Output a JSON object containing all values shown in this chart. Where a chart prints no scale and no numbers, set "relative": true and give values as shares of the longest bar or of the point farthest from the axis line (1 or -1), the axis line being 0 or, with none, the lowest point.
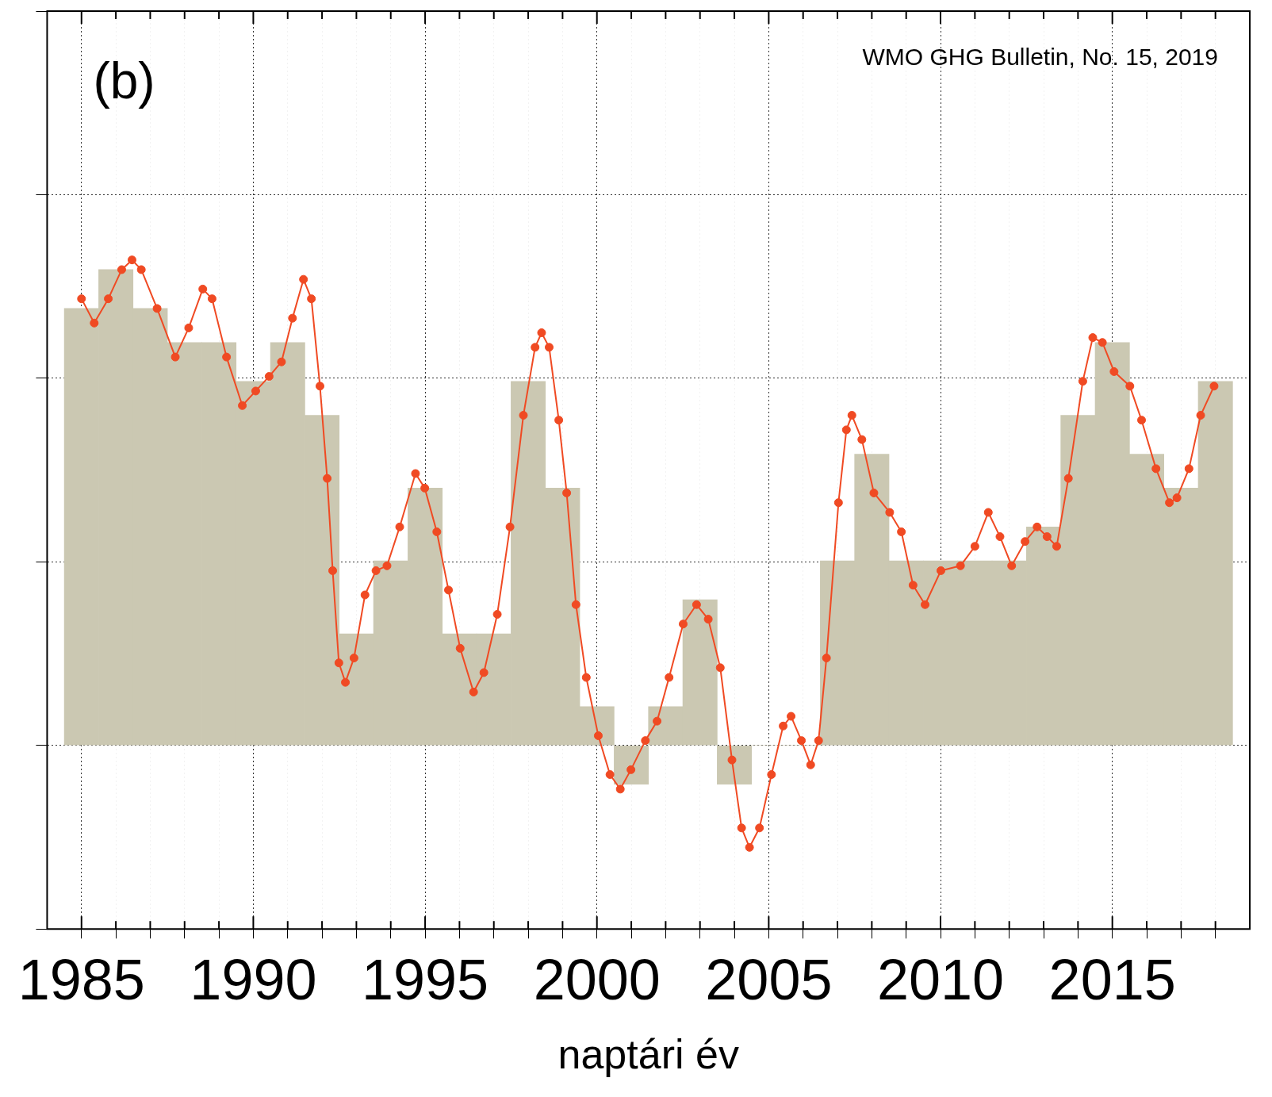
{
  "chart_data": {
    "type": "bar",
    "relative": true,
    "xlabel": "naptári év",
    "xlim": [
      1984,
      2019
    ],
    "xticks": [
      1985,
      {
        "value": 1986,
        "label": null
      },
      {
        "value": 1987,
        "label": null
      },
      {
        "value": 1988,
        "label": null
      },
      {
        "value": 1989,
        "label": null
      },
      1990,
      {
        "value": 1991,
        "label": null
      },
      {
        "value": 1992,
        "label": null
      },
      {
        "value": 1993,
        "label": null
      },
      {
        "value": 1994,
        "label": null
      },
      1995,
      {
        "value": 1996,
        "label": null
      },
      {
        "value": 1997,
        "label": null
      },
      {
        "value": 1998,
        "label": null
      },
      {
        "value": 1999,
        "label": null
      },
      2000,
      {
        "value": 2001,
        "label": null
      },
      {
        "value": 2002,
        "label": null
      },
      {
        "value": 2003,
        "label": null
      },
      {
        "value": 2004,
        "label": null
      },
      2005,
      {
        "value": 2006,
        "label": null
      },
      {
        "value": 2007,
        "label": null
      },
      {
        "value": 2008,
        "label": null
      },
      {
        "value": 2009,
        "label": null
      },
      2010,
      {
        "value": 2011,
        "label": null
      },
      {
        "value": 2012,
        "label": null
      },
      {
        "value": 2013,
        "label": null
      },
      {
        "value": 2014,
        "label": null
      },
      2015,
      {
        "value": 2016,
        "label": null
      },
      {
        "value": 2017,
        "label": null
      },
      {
        "value": 2018,
        "label": null
      }
    ],
    "grid": true,
    "tick_labels": "x",
    "annotations": [
      "(b)",
      "WMO GHG Bulletin, No. 15, 2019"
    ],
    "series": [
      {
        "color": "#cbc8b2",
        "x": [
          1985,
          1986,
          1987,
          1988,
          1989,
          1990,
          1991,
          1992,
          1993,
          1994,
          1995,
          1996,
          1997,
          1998,
          1999,
          2000,
          2001,
          2002,
          2003,
          2004,
          2005,
          2006,
          2007,
          2008,
          2009,
          2010,
          2011,
          2012,
          2013,
          2014,
          2015,
          2016,
          2017,
          2018
        ],
        "values": [
          0.9,
          0.98,
          0.9,
          0.83,
          0.83,
          0.75,
          0.83,
          0.68,
          0.23,
          0.38,
          0.53,
          0.23,
          0.23,
          0.75,
          0.53,
          0.08,
          -0.08,
          0.08,
          0.3,
          -0.08,
          0,
          0,
          0.38,
          0.6,
          0.38,
          0.38,
          0.38,
          0.38,
          0.45,
          0.68,
          0.83,
          0.6,
          0.53,
          0.75
        ]
      },
      {
        "type": "line",
        "color": "#f04a23",
        "marker": "circle",
        "x": [
          1985.0,
          1985.37,
          1985.78,
          1986.17,
          1986.47,
          1986.74,
          1987.2,
          1987.73,
          1988.12,
          1988.53,
          1988.8,
          1989.22,
          1989.68,
          1990.07,
          1990.46,
          1990.82,
          1991.14,
          1991.46,
          1991.69,
          1991.94,
          1992.15,
          1992.31,
          1992.49,
          1992.68,
          1992.93,
          1993.25,
          1993.57,
          1993.89,
          1994.26,
          1994.72,
          1994.99,
          1995.34,
          1995.68,
          1996.02,
          1996.41,
          1996.71,
          1997.1,
          1997.47,
          1997.86,
          1998.2,
          1998.39,
          1998.61,
          1998.89,
          1999.12,
          1999.39,
          1999.69,
          2000.04,
          2000.38,
          2000.68,
          2000.99,
          2001.41,
          2001.75,
          2002.1,
          2002.51,
          2002.9,
          2003.24,
          2003.59,
          2003.93,
          2004.21,
          2004.44,
          2004.73,
          2005.08,
          2005.42,
          2005.65,
          2005.95,
          2006.22,
          2006.45,
          2006.68,
          2007.03,
          2007.26,
          2007.42,
          2007.71,
          2008.06,
          2008.52,
          2008.86,
          2009.2,
          2009.55,
          2010.01,
          2010.58,
          2011.0,
          2011.39,
          2011.73,
          2012.07,
          2012.46,
          2012.81,
          2013.1,
          2013.38,
          2013.72,
          2014.14,
          2014.43,
          2014.71,
          2015.05,
          2015.51,
          2015.85,
          2016.27,
          2016.66,
          2016.88,
          2017.23,
          2017.57,
          2017.96
        ],
        "values": [
          0.92,
          0.87,
          0.92,
          0.98,
          1,
          0.98,
          0.9,
          0.8,
          0.86,
          0.94,
          0.92,
          0.8,
          0.7,
          0.73,
          0.76,
          0.79,
          0.88,
          0.96,
          0.92,
          0.74,
          0.55,
          0.36,
          0.17,
          0.13,
          0.18,
          0.31,
          0.36,
          0.37,
          0.45,
          0.56,
          0.53,
          0.44,
          0.32,
          0.2,
          0.11,
          0.15,
          0.27,
          0.45,
          0.68,
          0.82,
          0.85,
          0.82,
          0.67,
          0.52,
          0.29,
          0.14,
          0.02,
          -0.06,
          -0.09,
          -0.05,
          0.01,
          0.05,
          0.14,
          0.25,
          0.29,
          0.26,
          0.16,
          -0.03,
          -0.17,
          -0.21,
          -0.17,
          -0.06,
          0.04,
          0.06,
          0.01,
          -0.04,
          0.01,
          0.18,
          0.5,
          0.65,
          0.68,
          0.63,
          0.52,
          0.48,
          0.44,
          0.33,
          0.29,
          0.36,
          0.37,
          0.41,
          0.48,
          0.43,
          0.37,
          0.42,
          0.45,
          0.43,
          0.41,
          0.55,
          0.75,
          0.84,
          0.83,
          0.77,
          0.74,
          0.67,
          0.57,
          0.5,
          0.51,
          0.57,
          0.68,
          0.74
        ]
      }
    ]
  }
}
